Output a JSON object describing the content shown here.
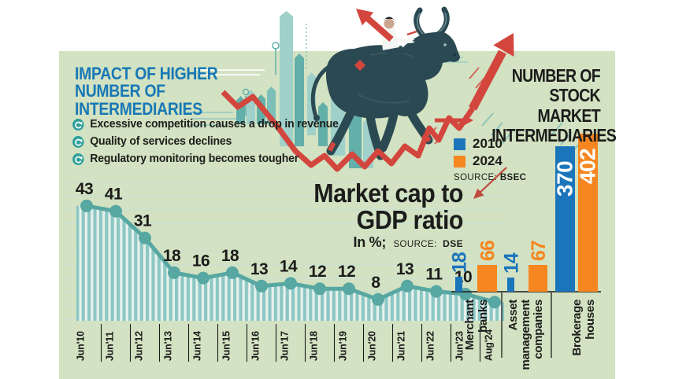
{
  "page": {
    "background": "#ffffff",
    "panel_background": "#d2e2c2"
  },
  "impact": {
    "heading": "IMPACT OF HIGHER\nNUMBER OF\nINTERMEDIARIES",
    "heading_color": "#1878b5",
    "bullets": [
      "Excessive competition causes a drop in revenue",
      "Quality of services declines",
      "Regulatory monitoring becomes tougher"
    ]
  },
  "right_heading": "NUMBER OF\nSTOCK MARKET\nINTERMEDIARIES",
  "legend": {
    "items": [
      {
        "label": "2010",
        "color": "#1b75bb"
      },
      {
        "label": "2024",
        "color": "#f6861f"
      }
    ],
    "source_prefix": "SOURCE:",
    "source_name": "BSEC"
  },
  "market_cap": {
    "title": "Market cap to\nGDP ratio",
    "unit_label": "In %;",
    "source_prefix": "SOURCE:",
    "source_name": "DSE"
  },
  "icons": {
    "bullet_icon": "circular-arrow",
    "illustration": "bull-with-rider",
    "trend_up": "zigzag-arrow-up"
  },
  "colors": {
    "accent_red": "#d3463d",
    "teal_line": "#57a7a2",
    "stripe_teal": "#8cc7c3",
    "stripe_light": "#e7f1ec",
    "gridline": "#c8dfd2",
    "bull_dark": "#2b4952",
    "text_black": "#1c1c1b"
  },
  "chart_data": [
    {
      "type": "line",
      "title": "Market cap to GDP ratio",
      "ylabel": "In %",
      "source": "DSE",
      "x": [
        "Jun'10",
        "Jun'11",
        "Jun'12",
        "Jun'13",
        "Jun'14",
        "Jun'15",
        "Jun'16",
        "Jun'17",
        "Jun'18",
        "Jun'19",
        "Jun'20",
        "Jun'21",
        "Jun'22",
        "Jun'23",
        "Aug'24"
      ],
      "values": [
        43,
        41,
        31,
        18,
        16,
        18,
        13,
        14,
        12,
        12,
        8,
        13,
        11,
        10,
        7
      ],
      "ylim": [
        0,
        45
      ],
      "gridlines": true,
      "style": {
        "line_color": "#57a7a2",
        "marker": "circle",
        "area": "vertical-stripes"
      }
    },
    {
      "type": "bar",
      "title": "Number of stock market intermediaries",
      "source": "BSEC",
      "categories": [
        "Merchant banks",
        "Asset management companies",
        "Brokerage houses"
      ],
      "category_lines": [
        [
          "Merchant",
          "banks"
        ],
        [
          "Asset",
          "management",
          "companies"
        ],
        [
          "Brokerage",
          "houses"
        ]
      ],
      "series": [
        {
          "name": "2010",
          "color": "#1b75bb",
          "values": [
            18,
            14,
            370
          ]
        },
        {
          "name": "2024",
          "color": "#f6861f",
          "values": [
            66,
            67,
            402
          ]
        }
      ],
      "value_labels": true,
      "legend_position": "top-left"
    }
  ]
}
